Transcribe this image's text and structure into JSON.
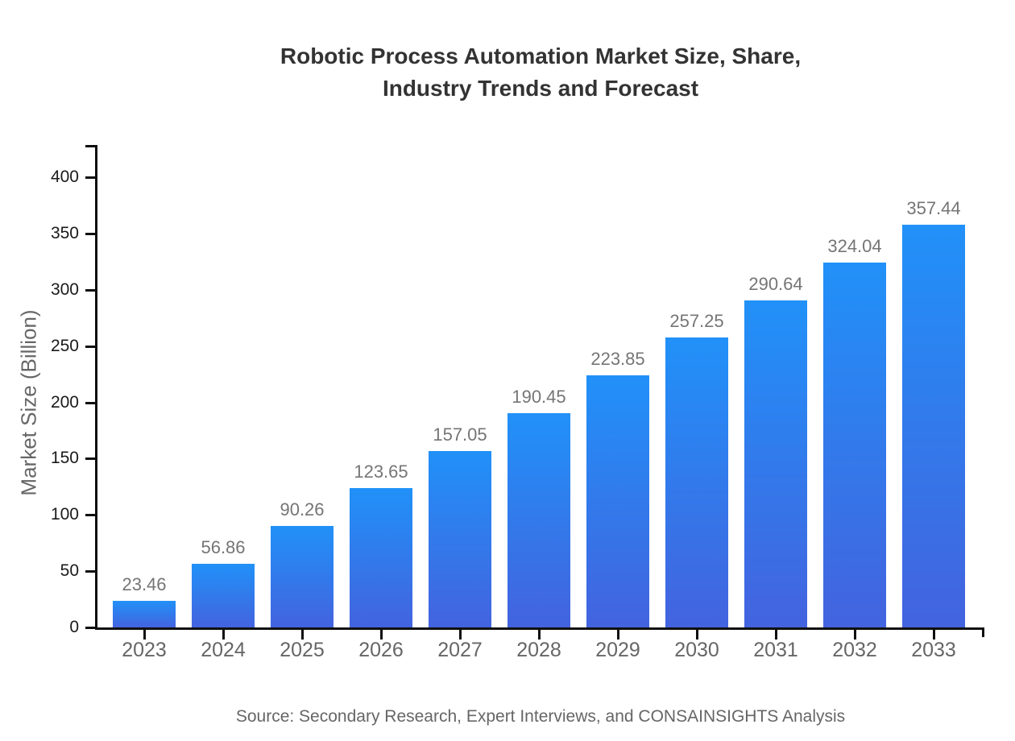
{
  "header": {
    "title_line1": "Robotic Process Automation Market Size, Share,",
    "title_line2": "Industry Trends and Forecast"
  },
  "footer": {
    "source": "Source: Secondary Research, Expert Interviews, and CONSAINSIGHTS Analysis"
  },
  "chart_data": {
    "type": "bar",
    "title": "Robotic Process Automation Market Size, Share, Industry Trends and Forecast",
    "categories": [
      "2023",
      "2024",
      "2025",
      "2026",
      "2027",
      "2028",
      "2029",
      "2030",
      "2031",
      "2032",
      "2033"
    ],
    "values": [
      23.46,
      56.86,
      90.26,
      123.65,
      157.05,
      190.45,
      223.85,
      257.25,
      290.64,
      324.04,
      357.44
    ],
    "value_labels": [
      "23.46",
      "56.86",
      "90.26",
      "123.65",
      "157.05",
      "190.45",
      "223.85",
      "257.25",
      "290.64",
      "324.04",
      "357.44"
    ],
    "xlabel": "",
    "ylabel": "Market Size (Billion)",
    "ylim": [
      0,
      400
    ],
    "yticks": [
      0,
      50,
      100,
      150,
      200,
      250,
      300,
      350,
      400
    ],
    "grid": false,
    "legend": "none",
    "bar_color_top": "#2191f8",
    "bar_color_bottom": "#4363df",
    "value_label_color": "#757575",
    "source": "Source: Secondary Research, Expert Interviews, and CONSAINSIGHTS Analysis"
  }
}
